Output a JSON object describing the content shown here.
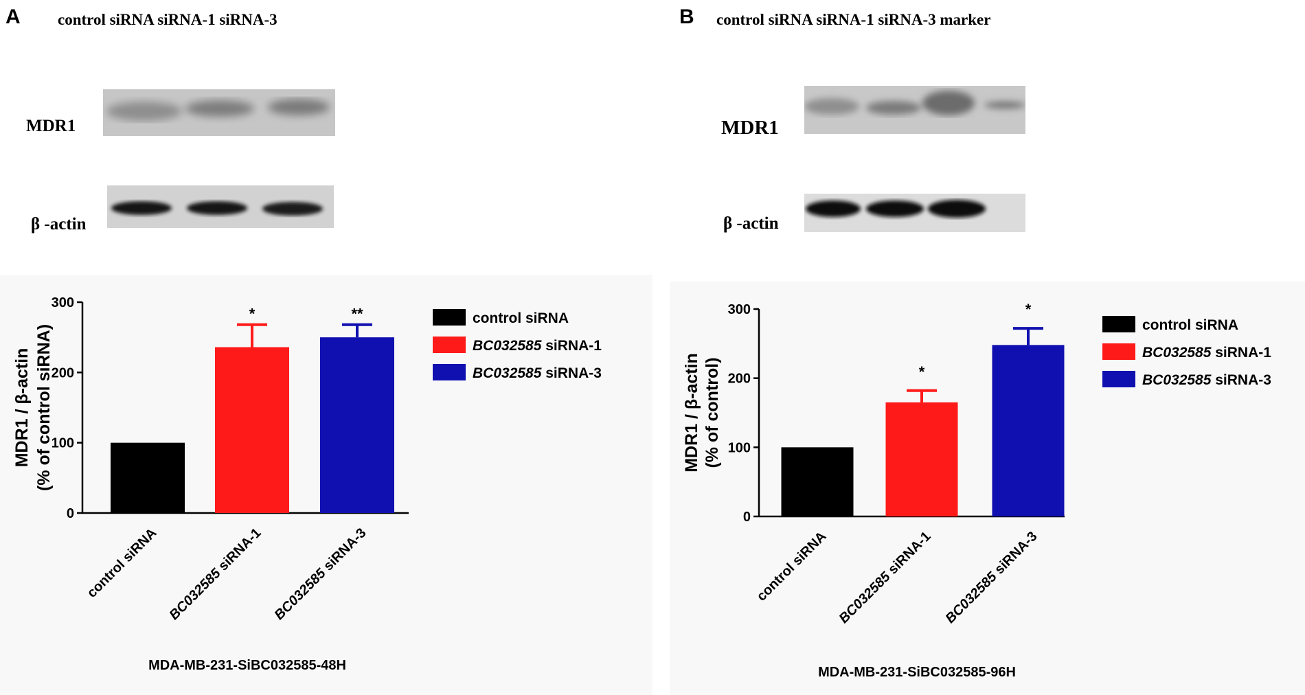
{
  "figure": {
    "panels": [
      {
        "letter": "A",
        "lane_header": "control siRNA siRNA-1 siRNA-3",
        "blot_labels": {
          "top": "MDR1",
          "bottom": "β -actin"
        },
        "ylabel_line1": "MDR1 / β-actin",
        "ylabel_line2": "(% of control siRNA)",
        "cell_line": "MDA-MB-231-SiBC032585-48H",
        "legend": [
          {
            "gene": "",
            "text": "control siRNA",
            "color": "#000000"
          },
          {
            "gene": "BC032585",
            "text": " siRNA-1",
            "color": "#ff1a1a"
          },
          {
            "gene": "BC032585",
            "text": " siRNA-3",
            "color": "#1010b0"
          }
        ],
        "categories": [
          {
            "gene": "",
            "text": "control siRNA"
          },
          {
            "gene": "BC032585",
            "text": " siRNA-1"
          },
          {
            "gene": "BC032585",
            "text": " siRNA-3"
          }
        ]
      },
      {
        "letter": "B",
        "lane_header": "control siRNA siRNA-1 siRNA-3 marker",
        "blot_labels": {
          "top": "MDR1",
          "bottom": "β -actin"
        },
        "ylabel_line1": "MDR1 / β-actin",
        "ylabel_line2": "(% of control)",
        "cell_line": "MDA-MB-231-SiBC032585-96H",
        "legend": [
          {
            "gene": "",
            "text": "control siRNA",
            "color": "#000000"
          },
          {
            "gene": "BC032585",
            "text": " siRNA-1",
            "color": "#ff1a1a"
          },
          {
            "gene": "BC032585",
            "text": " siRNA-3",
            "color": "#1010b0"
          }
        ],
        "categories": [
          {
            "gene": "",
            "text": "control siRNA"
          },
          {
            "gene": "BC032585",
            "text": " siRNA-1"
          },
          {
            "gene": "BC032585",
            "text": " siRNA-3"
          }
        ]
      }
    ]
  },
  "chart_data": [
    {
      "type": "bar",
      "categories": [
        "control siRNA",
        "BC032585 siRNA-1",
        "BC032585 siRNA-3"
      ],
      "values": [
        100,
        236,
        250
      ],
      "error_bars": [
        0,
        32,
        18
      ],
      "significance": [
        "",
        "*",
        "**"
      ],
      "colors": [
        "#000000",
        "#ff1a1a",
        "#1010b0"
      ],
      "ylabel": "MDR1 / β-actin (% of control siRNA)",
      "xlabel": "MDA-MB-231-SiBC032585-48H",
      "ylim": [
        0,
        300
      ],
      "yticks": [
        0,
        100,
        200,
        300
      ],
      "grid": false,
      "legend_position": "right"
    },
    {
      "type": "bar",
      "categories": [
        "control siRNA",
        "BC032585 siRNA-1",
        "BC032585 siRNA-3"
      ],
      "values": [
        100,
        165,
        248
      ],
      "error_bars": [
        0,
        17,
        24
      ],
      "significance": [
        "",
        "*",
        "*"
      ],
      "colors": [
        "#000000",
        "#ff1a1a",
        "#1010b0"
      ],
      "ylabel": "MDR1 / β-actin (% of control)",
      "xlabel": "MDA-MB-231-SiBC032585-96H",
      "ylim": [
        0,
        300
      ],
      "yticks": [
        0,
        100,
        200,
        300
      ],
      "grid": false,
      "legend_position": "right"
    }
  ]
}
